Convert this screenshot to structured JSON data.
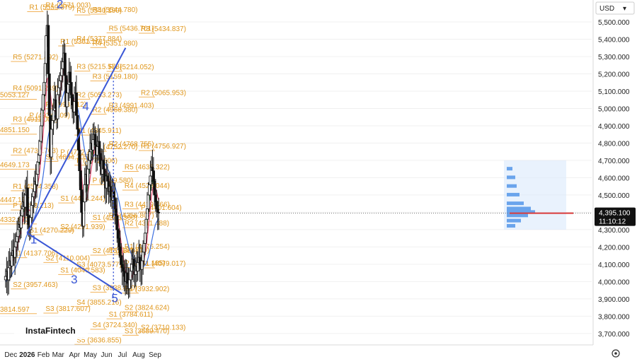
{
  "chart_data": {
    "type": "candlestick",
    "currency": "USD",
    "watermark": "InstaFintech",
    "current_price": "4,395.100",
    "countdown": "11:10:12",
    "y_ticks": [
      "5,500.000",
      "5,400.000",
      "5,300.000",
      "5,200.000",
      "5,100.000",
      "5,000.000",
      "4,900.000",
      "4,800.000",
      "4,700.000",
      "4,600.000",
      "4,500.000",
      "4,400.000",
      "4,300.000",
      "4,200.000",
      "4,100.000",
      "4,000.000",
      "3,900.000",
      "3,800.000",
      "3,700.000"
    ],
    "y_tick_values": [
      5500,
      5400,
      5300,
      5200,
      5100,
      5000,
      4900,
      4800,
      4700,
      4600,
      4500,
      4400,
      4300,
      4200,
      4100,
      4000,
      3900,
      3800,
      3700
    ],
    "x_ticks": [
      {
        "label": "Dec",
        "bold": false,
        "date": "2025-12-01"
      },
      {
        "label": "2026",
        "bold": true,
        "date": "2026-01-01"
      },
      {
        "label": "Feb",
        "bold": false,
        "date": "2026-02-01"
      },
      {
        "label": "Mar",
        "bold": false,
        "date": "2026-03-01"
      },
      {
        "label": "Apr",
        "bold": false,
        "date": "2026-04-01"
      },
      {
        "label": "May",
        "bold": false,
        "date": "2026-05-01"
      },
      {
        "label": "Jun",
        "bold": false,
        "date": "2026-06-01"
      },
      {
        "label": "Jul",
        "bold": false,
        "date": "2026-07-01"
      },
      {
        "label": "Aug",
        "bold": false,
        "date": "2026-08-01"
      },
      {
        "label": "Sep",
        "bold": false,
        "date": "2026-09-01"
      }
    ],
    "pivot_levels": [
      {
        "label": "R1 (5559.379)",
        "value": 5559.379,
        "from": "2026-01-01",
        "to": "2026-02-01"
      },
      {
        "label": "R5 (5271.492)",
        "value": 5271.492,
        "from": "2025-12-01",
        "to": "2026-01-01"
      },
      {
        "label": "R4 (5091.249)",
        "value": 5091.249,
        "from": "2025-12-01",
        "to": "2026-01-01"
      },
      {
        "label": "R3 (4911.006)",
        "value": 4911.006,
        "from": "2025-12-01",
        "to": "2026-01-01"
      },
      {
        "label": "R2 (4730.763)",
        "value": 4730.763,
        "from": "2025-12-01",
        "to": "2026-01-01"
      },
      {
        "label": "R1 (4524.358)",
        "value": 4524.358,
        "from": "2025-12-01",
        "to": "2026-01-01"
      },
      {
        "label": "P (4413.213)",
        "value": 4413.213,
        "from": "2025-12-01",
        "to": "2026-01-01"
      },
      {
        "label": "S1 (4137.706)",
        "value": 4137.706,
        "from": "2025-12-01",
        "to": "2026-01-01"
      },
      {
        "label": "S2 (3957.463)",
        "value": 3957.463,
        "from": "2025-12-01",
        "to": "2026-01-01"
      },
      {
        "label": "R1 (5571.003)",
        "value": 5571.003,
        "from": "2026-02-01",
        "to": "2026-03-01"
      },
      {
        "label": "P (4934.409)",
        "value": 4934.409,
        "from": "2026-01-01",
        "to": "2026-02-01"
      },
      {
        "label": "S1 (4270.229)",
        "value": 4270.229,
        "from": "2026-01-01",
        "to": "2026-02-01"
      },
      {
        "label": "P (4998.012)",
        "value": 4998.012,
        "from": "2026-02-01",
        "to": "2026-03-01"
      },
      {
        "label": "S1 (4694.305)",
        "value": 4694.305,
        "from": "2026-02-01",
        "to": "2026-03-01"
      },
      {
        "label": "S2 (4110.004)",
        "value": 4110.004,
        "from": "2026-02-01",
        "to": "2026-03-01"
      },
      {
        "label": "S3 (3817.607)",
        "value": 3817.607,
        "from": "2026-02-01",
        "to": "2026-03-01"
      },
      {
        "label": "R1 (5361.161)",
        "value": 5361.161,
        "from": "2026-03-01",
        "to": "2026-04-01"
      },
      {
        "label": "P (4722.451)",
        "value": 4722.451,
        "from": "2026-03-01",
        "to": "2026-04-01"
      },
      {
        "label": "S1 (4454.244)",
        "value": 4454.244,
        "from": "2026-03-01",
        "to": "2026-04-01"
      },
      {
        "label": "S2 (4291.939)",
        "value": 4291.939,
        "from": "2026-03-01",
        "to": "2026-04-01"
      },
      {
        "label": "S1 (4040.583)",
        "value": 4040.583,
        "from": "2026-03-01",
        "to": "2026-04-01"
      },
      {
        "label": "R5 (5540.190)",
        "value": 5540.19,
        "from": "2026-04-01",
        "to": "2026-05-01"
      },
      {
        "label": "R4 (5377.884)",
        "value": 5377.884,
        "from": "2026-04-01",
        "to": "2026-05-01"
      },
      {
        "label": "R3 (5215.578)",
        "value": 5215.578,
        "from": "2026-04-01",
        "to": "2026-05-01"
      },
      {
        "label": "R2 (5053.273)",
        "value": 5053.273,
        "from": "2026-04-01",
        "to": "2026-05-01"
      },
      {
        "label": "R1 (4845.911)",
        "value": 4845.911,
        "from": "2026-04-01",
        "to": "2026-05-01"
      },
      {
        "label": "P (4672.606)",
        "value": 4672.606,
        "from": "2026-04-01",
        "to": "2026-05-01"
      },
      {
        "label": "S3 (4073.577)",
        "value": 4073.577,
        "from": "2026-04-01",
        "to": "2026-05-01"
      },
      {
        "label": "S4 (3855.216)",
        "value": 3855.216,
        "from": "2026-04-01",
        "to": "2026-05-01"
      },
      {
        "label": "S5 (3636.855)",
        "value": 3636.855,
        "from": "2026-04-01",
        "to": "2026-05-01"
      },
      {
        "label": "R5 (5544.780)",
        "value": 5544.78,
        "from": "2026-05-01",
        "to": "2026-06-01"
      },
      {
        "label": "R4 (5351.980)",
        "value": 5351.98,
        "from": "2026-05-01",
        "to": "2026-06-01"
      },
      {
        "label": "R3 (5159.180)",
        "value": 5159.18,
        "from": "2026-05-01",
        "to": "2026-06-01"
      },
      {
        "label": "R2 (4966.380)",
        "value": 4966.38,
        "from": "2026-05-01",
        "to": "2026-06-01"
      },
      {
        "label": "R1 (4752.270)",
        "value": 4752.27,
        "from": "2026-05-01",
        "to": "2026-06-01"
      },
      {
        "label": "P (4559.580)",
        "value": 4559.58,
        "from": "2026-05-01",
        "to": "2026-06-01"
      },
      {
        "label": "S1 (4345.360)",
        "value": 4345.36,
        "from": "2026-05-01",
        "to": "2026-06-01"
      },
      {
        "label": "S2 (4152.560)",
        "value": 4152.56,
        "from": "2026-05-01",
        "to": "2026-06-01"
      },
      {
        "label": "S3 (3938.450)",
        "value": 3938.45,
        "from": "2026-05-01",
        "to": "2026-06-01"
      },
      {
        "label": "S4 (3724.340)",
        "value": 3724.34,
        "from": "2026-05-01",
        "to": "2026-06-01"
      },
      {
        "label": "R5 (5436.701)",
        "value": 5436.701,
        "from": "2026-06-01",
        "to": "2026-07-01"
      },
      {
        "label": "R4 (5214.052)",
        "value": 5214.052,
        "from": "2026-06-01",
        "to": "2026-07-01"
      },
      {
        "label": "R3 (4991.403)",
        "value": 4991.403,
        "from": "2026-06-01",
        "to": "2026-07-01"
      },
      {
        "label": "R2 (4768.755)",
        "value": 4768.755,
        "from": "2026-06-01",
        "to": "2026-07-01"
      },
      {
        "label": "R1 (4356.807)",
        "value": 4356.807,
        "from": "2026-06-01",
        "to": "2026-07-01"
      },
      {
        "label": "P (4156.719)",
        "value": 4156.719,
        "from": "2026-06-01",
        "to": "2026-07-01"
      },
      {
        "label": "S1 (3932.902)",
        "value": 3932.902,
        "from": "2026-07-01",
        "to": "2026-08-01"
      },
      {
        "label": "S1 (3784.611)",
        "value": 3784.611,
        "from": "2026-06-01",
        "to": "2026-07-01"
      },
      {
        "label": "R1 (4176.254)",
        "value": 4176.254,
        "from": "2026-07-01",
        "to": "2026-08-01"
      },
      {
        "label": "P (4081.185)",
        "value": 4081.185,
        "from": "2026-07-01",
        "to": "2026-08-01"
      },
      {
        "label": "S2 (3824.624)",
        "value": 3824.624,
        "from": "2026-07-01",
        "to": "2026-08-01"
      },
      {
        "label": "S3 (3689.470)",
        "value": 3689.47,
        "from": "2026-07-01",
        "to": "2026-08-01"
      },
      {
        "label": "R3 (5434.837)",
        "value": 5434.837,
        "from": "2026-08-01",
        "to": "2026-09-01"
      },
      {
        "label": "R2 (5065.953)",
        "value": 5065.953,
        "from": "2026-08-01",
        "to": "2026-09-01"
      },
      {
        "label": "R1 (4756.927)",
        "value": 4756.927,
        "from": "2026-08-01",
        "to": "2026-09-01"
      },
      {
        "label": "R5 (4636.322)",
        "value": 4636.322,
        "from": "2026-07-01",
        "to": "2026-08-01"
      },
      {
        "label": "R4 (4528.044)",
        "value": 4528.044,
        "from": "2026-07-01",
        "to": "2026-08-01"
      },
      {
        "label": "R3 (4419.766)",
        "value": 4419.766,
        "from": "2026-07-01",
        "to": "2026-08-01"
      },
      {
        "label": "R2 (4311.488)",
        "value": 4311.488,
        "from": "2026-07-01",
        "to": "2026-08-01"
      },
      {
        "label": "P (4401.604)",
        "value": 4401.604,
        "from": "2026-08-01",
        "to": "2026-09-01"
      },
      {
        "label": "S1 (4079.017)",
        "value": 4079.017,
        "from": "2026-08-01",
        "to": "2026-09-01"
      },
      {
        "label": "S2 (3710.133)",
        "value": 3710.133,
        "from": "2026-08-01",
        "to": "2026-09-01"
      }
    ],
    "edge_levels": [
      {
        "label": "5053.127",
        "value": 5053.127
      },
      {
        "label": "4851.150",
        "value": 4851.15
      },
      {
        "label": "4649.173",
        "value": 4649.173
      },
      {
        "label": "4447.197",
        "value": 4447.197
      },
      {
        "label": "4332.873",
        "value": 4332.873
      },
      {
        "label": "3814.597",
        "value": 3814.597
      }
    ],
    "wave_labels": [
      {
        "label": "1",
        "date": "2026-01-07",
        "value": 4220
      },
      {
        "label": "2",
        "date": "2026-02-26",
        "value": 5580
      },
      {
        "label": "3",
        "date": "2026-03-25",
        "value": 3990
      },
      {
        "label": "4",
        "date": "2026-04-16",
        "value": 4990
      },
      {
        "label": "5",
        "date": "2026-06-10",
        "value": 3880
      }
    ],
    "trend_lines": [
      {
        "from": {
          "date": "2026-01-01",
          "value": 4280
        },
        "to": {
          "date": "2026-06-30",
          "value": 3930
        }
      },
      {
        "from": {
          "date": "2026-01-01",
          "value": 4280
        },
        "to": {
          "date": "2026-07-07",
          "value": 5350
        }
      }
    ],
    "candles": {
      "dates_start": "2025-11-21",
      "dates_end": "2026-09-08",
      "closes": [
        4030,
        4060,
        4010,
        4080,
        4120,
        4090,
        4150,
        4180,
        4140,
        4200,
        4230,
        4260,
        4300,
        4330,
        4310,
        4380,
        4420,
        4460,
        4430,
        4500,
        4540,
        4380,
        4330,
        4300,
        4370,
        4440,
        4490,
        4520,
        4580,
        4560,
        4620,
        4690,
        4730,
        4810,
        4900,
        4990,
        5080,
        5150,
        5260,
        5420,
        5480,
        5200,
        4960,
        4720,
        4880,
        4930,
        4990,
        5050,
        5000,
        4940,
        5080,
        5120,
        5160,
        5190,
        5230,
        5270,
        5320,
        5190,
        5010,
        5090,
        5140,
        5210,
        5150,
        5080,
        5020,
        4980,
        5040,
        5090,
        4960,
        4880,
        4760,
        4640,
        4530,
        4400,
        4320,
        4460,
        4560,
        4620,
        4560,
        4650,
        4700,
        4750,
        4800,
        4760,
        4820,
        4850,
        4790,
        4730,
        4780,
        4810,
        4740,
        4680,
        4620,
        4700,
        4650,
        4580,
        4540,
        4610,
        4580,
        4520,
        4550,
        4490,
        4470,
        4520,
        4480,
        4420,
        4380,
        4300,
        4250,
        4200,
        4150,
        4100,
        4080,
        4060,
        4030,
        4000,
        4050,
        3990,
        3960,
        4010,
        4060,
        4100,
        4130,
        4080,
        4040,
        4090,
        4060,
        4110,
        4140,
        4100,
        4070,
        4120,
        4170,
        4220,
        4280,
        4360,
        4420,
        4500,
        4560,
        4610,
        4660,
        4640,
        4580,
        4500,
        4460,
        4420,
        4400,
        4395
      ],
      "ma_fast": [
        4030,
        4040,
        4040,
        4050,
        4070,
        4080,
        4100,
        4120,
        4130,
        4150,
        4170,
        4190,
        4220,
        4250,
        4270,
        4300,
        4330,
        4360,
        4380,
        4410,
        4440,
        4430,
        4420,
        4410,
        4410,
        4420,
        4440,
        4460,
        4490,
        4510,
        4540,
        4570,
        4600,
        4650,
        4710,
        4780,
        4850,
        4920,
        5000,
        5090,
        5170,
        5180,
        5150,
        5090,
        5030,
        4990,
        4970,
        4980,
        4990,
        4990,
        5010,
        5040,
        5070,
        5110,
        5150,
        5190,
        5230,
        5230,
        5200,
        5170,
        5150,
        5150,
        5140,
        5120,
        5090,
        5060,
        5040,
        5040,
        5010,
        4960,
        4890,
        4810,
        4720,
        4620,
        4530,
        4480,
        4460,
        4470,
        4480,
        4510,
        4550,
        4590,
        4640,
        4680,
        4720,
        4760,
        4780,
        4780,
        4780,
        4780,
        4770,
        4750,
        4720,
        4700,
        4680,
        4660,
        4640,
        4630,
        4610,
        4590,
        4570,
        4550,
        4530,
        4510,
        4500,
        4480,
        4450,
        4410,
        4370,
        4320,
        4270,
        4220,
        4180,
        4140,
        4100,
        4070,
        4050,
        4030,
        4010,
        4000,
        4010,
        4020,
        4040,
        4060,
        4060,
        4070,
        4070,
        4080,
        4090,
        4090,
        4090,
        4100,
        4110,
        4130,
        4160,
        4200,
        4250,
        4310,
        4370,
        4430,
        4490,
        4530,
        4550,
        4550,
        4540,
        4520,
        4490,
        4470
      ],
      "ma_slow": [
        4000,
        4005,
        4010,
        4015,
        4020,
        4030,
        4040,
        4050,
        4060,
        4070,
        4085,
        4100,
        4115,
        4130,
        4145,
        4160,
        4180,
        4200,
        4220,
        4240,
        4260,
        4275,
        4290,
        4300,
        4310,
        4325,
        4340,
        4355,
        4375,
        4395,
        4415,
        4440,
        4465,
        4495,
        4530,
        4570,
        4610,
        4655,
        4700,
        4750,
        4800,
        4840,
        4870,
        4890,
        4905,
        4920,
        4935,
        4950,
        4960,
        4970,
        4985,
        5000,
        5015,
        5030,
        5050,
        5070,
        5090,
        5105,
        5110,
        5110,
        5110,
        5110,
        5105,
        5095,
        5080,
        5065,
        5050,
        5040,
        5025,
        5005,
        4980,
        4950,
        4915,
        4875,
        4830,
        4790,
        4755,
        4730,
        4710,
        4700,
        4695,
        4695,
        4700,
        4710,
        4720,
        4730,
        4735,
        4740,
        4740,
        4740,
        4735,
        4725,
        4715,
        4705,
        4695,
        4685,
        4675,
        4665,
        4650,
        4640,
        4625,
        4610,
        4595,
        4580,
        4565,
        4550,
        4530,
        4510,
        4485,
        4460,
        4430,
        4400,
        4370,
        4340,
        4310,
        4280,
        4255,
        4230,
        4205,
        4185,
        4170,
        4155,
        4145,
        4135,
        4125,
        4115,
        4105,
        4100,
        4095,
        4090,
        4085,
        4085,
        4085,
        4090,
        4095,
        4105,
        4120,
        4140,
        4165,
        4195,
        4225,
        4255,
        4285,
        4310,
        4330,
        4345,
        4355,
        4365
      ]
    }
  }
}
